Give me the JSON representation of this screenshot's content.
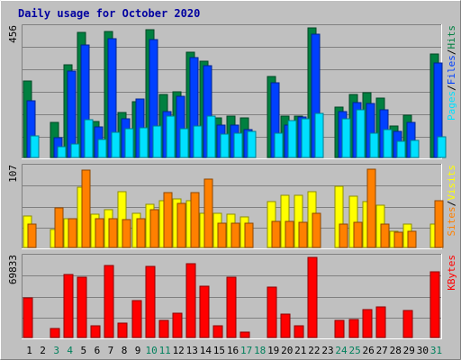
{
  "chart_data": {
    "type": "bar",
    "title": "Daily usage for October 2020",
    "days": [
      "1",
      "2",
      "3",
      "4",
      "5",
      "6",
      "7",
      "8",
      "9",
      "10",
      "11",
      "12",
      "13",
      "14",
      "15",
      "16",
      "17",
      "18",
      "19",
      "20",
      "21",
      "22",
      "23",
      "24",
      "25",
      "26",
      "27",
      "28",
      "29",
      "30",
      "31"
    ],
    "weekend_days": [
      3,
      4,
      10,
      11,
      17,
      18,
      24,
      25,
      31
    ],
    "colors": {
      "background": "#c0c0c0",
      "title": "#0000a0",
      "hits": "#008040",
      "files": "#0040ff",
      "pages": "#00e0ff",
      "visits": "#ffff00",
      "sites": "#ff8000",
      "kbytes": "#ff0000",
      "weekend": "#00805c",
      "weekday": "#000000"
    },
    "panels": [
      {
        "id": "top",
        "ymax": "456",
        "ymax_value": 456,
        "legend": [
          "Pages",
          "/",
          "Files",
          "/",
          "Hits"
        ],
        "legend_colors": [
          "#00e0ff",
          "#000000",
          "#0040ff",
          "#000000",
          "#008040"
        ],
        "series": [
          {
            "name": "Hits",
            "color": "#008040",
            "values": [
              268,
              0,
              123,
              327,
              440,
              126,
              443,
              157,
              196,
              450,
              223,
              230,
              371,
              340,
              138,
              145,
              138,
              0,
              285,
              147,
              146,
              456,
              0,
              177,
              223,
              227,
              210,
              112,
              150,
              0,
              363
            ]
          },
          {
            "name": "Files",
            "color": "#0040ff",
            "values": [
              198,
              0,
              70,
              305,
              395,
              108,
              418,
              136,
              205,
              415,
              163,
              214,
              351,
              324,
              113,
              115,
              98,
              0,
              264,
              115,
              143,
              434,
              0,
              162,
              194,
              191,
              169,
              93,
              124,
              0,
              331
            ]
          },
          {
            "name": "Pages",
            "color": "#00e0ff",
            "values": [
              76,
              0,
              39,
              49,
              133,
              63,
              88,
              100,
              105,
              111,
              145,
              102,
              112,
              146,
              82,
              87,
              92,
              0,
              86,
              131,
              135,
              155,
              0,
              137,
              168,
              86,
              97,
              56,
              60,
              0,
              74
            ]
          }
        ]
      },
      {
        "id": "mid",
        "ymax": "107",
        "ymax_value": 107,
        "legend": [
          "Sites",
          "/",
          "Visits"
        ],
        "legend_colors": [
          "#ff8000",
          "#000000",
          "#ffff00"
        ],
        "series": [
          {
            "name": "Visits",
            "color": "#ffff00",
            "values": [
              42,
              0,
              24,
              38,
              81,
              45,
              50,
              74,
              46,
              58,
              63,
              65,
              62,
              46,
              46,
              45,
              41,
              0,
              61,
              70,
              70,
              74,
              0,
              82,
              69,
              61,
              57,
              22,
              31,
              0,
              31
            ]
          },
          {
            "name": "Sites",
            "color": "#ff8000",
            "values": [
              31,
              0,
              53,
              38,
              103,
              39,
              39,
              37,
              38,
              51,
              73,
              59,
              73,
              91,
              33,
              33,
              33,
              0,
              35,
              35,
              34,
              46,
              0,
              31,
              34,
              104,
              31,
              21,
              22,
              0,
              62
            ]
          }
        ]
      },
      {
        "id": "bot",
        "ymax": "69833",
        "ymax_value": 69833,
        "legend": [
          "KBytes"
        ],
        "legend_colors": [
          "#ff0000"
        ],
        "series": [
          {
            "name": "KBytes",
            "color": "#ff0000",
            "values": [
              34820,
              0,
              7818,
              55262,
              52575,
              9814,
              62886,
              12478,
              32345,
              61888,
              14549,
              21012,
              63965,
              45005,
              10265,
              52869,
              4602,
              0,
              44122,
              20262,
              9921,
              69833,
              0,
              14549,
              15628,
              24051,
              26746,
              0,
              23509,
              0,
              57657
            ]
          }
        ]
      }
    ]
  }
}
